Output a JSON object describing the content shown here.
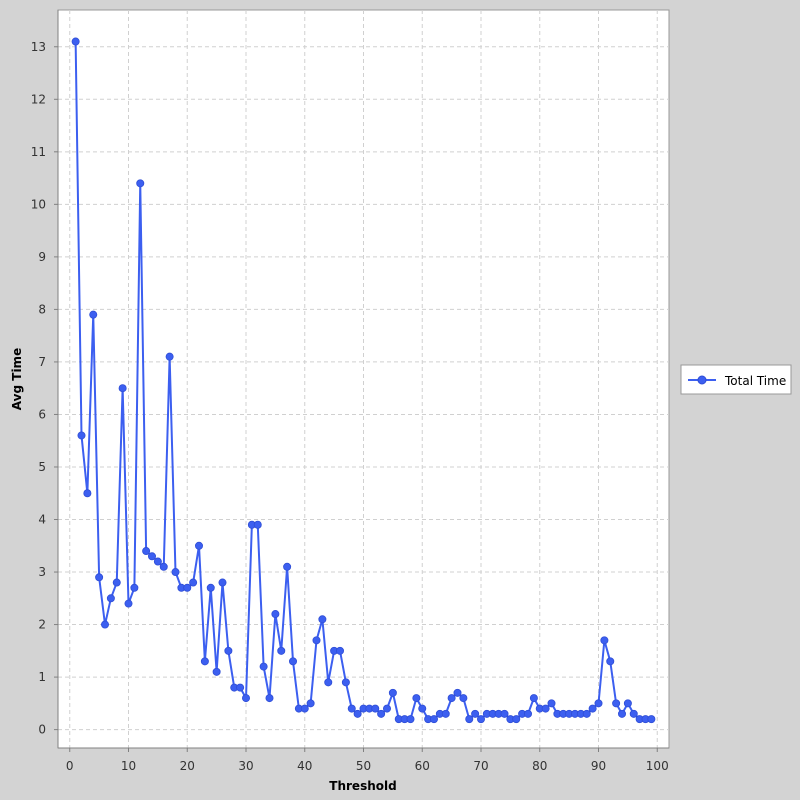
{
  "chart_data": {
    "type": "line",
    "xlabel": "Threshold",
    "ylabel": "Avg Time",
    "xlim": [
      -2,
      102
    ],
    "ylim": [
      -0.35,
      13.7
    ],
    "xticks": [
      0,
      10,
      20,
      30,
      40,
      50,
      60,
      70,
      80,
      90,
      100
    ],
    "yticks": [
      0,
      1,
      2,
      3,
      4,
      5,
      6,
      7,
      8,
      9,
      10,
      11,
      12,
      13
    ],
    "grid": true,
    "legend_position": "right",
    "x": [
      1,
      2,
      3,
      4,
      5,
      6,
      7,
      8,
      9,
      10,
      11,
      12,
      13,
      14,
      15,
      16,
      17,
      18,
      19,
      20,
      21,
      22,
      23,
      24,
      25,
      26,
      27,
      28,
      29,
      30,
      31,
      32,
      33,
      34,
      35,
      36,
      37,
      38,
      39,
      40,
      41,
      42,
      43,
      44,
      45,
      46,
      47,
      48,
      49,
      50,
      51,
      52,
      53,
      54,
      55,
      56,
      57,
      58,
      59,
      60,
      61,
      62,
      63,
      64,
      65,
      66,
      67,
      68,
      69,
      70,
      71,
      72,
      73,
      74,
      75,
      76,
      77,
      78,
      79,
      80,
      81,
      82,
      83,
      84,
      85,
      86,
      87,
      88,
      89,
      90,
      91,
      92,
      93,
      94,
      95,
      96,
      97,
      98,
      99
    ],
    "series": [
      {
        "name": "Total Time",
        "color": "#3c5ff0",
        "values": [
          13.1,
          5.6,
          4.5,
          7.9,
          2.9,
          2.0,
          2.5,
          2.8,
          6.5,
          2.4,
          2.7,
          10.4,
          3.4,
          3.3,
          3.2,
          3.1,
          7.1,
          3.0,
          2.7,
          2.7,
          2.8,
          3.5,
          1.3,
          2.7,
          1.1,
          2.8,
          1.5,
          0.8,
          0.8,
          0.6,
          3.9,
          3.9,
          1.2,
          0.6,
          2.2,
          1.5,
          3.1,
          1.3,
          0.4,
          0.4,
          0.5,
          1.7,
          2.1,
          0.9,
          1.5,
          1.5,
          0.9,
          0.4,
          0.3,
          0.4,
          0.4,
          0.4,
          0.3,
          0.4,
          0.7,
          0.2,
          0.2,
          0.2,
          0.6,
          0.4,
          0.2,
          0.2,
          0.3,
          0.3,
          0.6,
          0.7,
          0.6,
          0.2,
          0.3,
          0.2,
          0.3,
          0.3,
          0.3,
          0.3,
          0.2,
          0.2,
          0.3,
          0.3,
          0.6,
          0.4,
          0.4,
          0.5,
          0.3,
          0.3,
          0.3,
          0.3,
          0.3,
          0.3,
          0.4,
          0.5,
          1.7,
          1.3,
          0.5,
          0.3,
          0.5,
          0.3,
          0.2,
          0.2,
          0.2
        ]
      }
    ]
  }
}
